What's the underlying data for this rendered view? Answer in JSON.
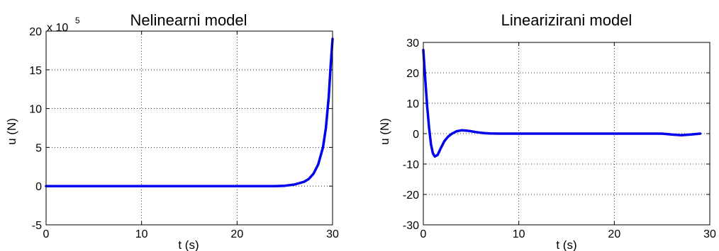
{
  "chart_data": [
    {
      "type": "line",
      "title": "Nelinearni model",
      "xlabel": "t (s)",
      "ylabel": "u (N)",
      "y_multiplier_label": {
        "base": "x 10",
        "exponent": "5"
      },
      "xlim": [
        0,
        30
      ],
      "ylim": [
        -5,
        20
      ],
      "xticks": [
        0,
        10,
        20,
        30
      ],
      "yticks": [
        -5,
        0,
        5,
        10,
        15,
        20
      ],
      "xtick_labels": [
        "0",
        "10",
        "20",
        "30"
      ],
      "ytick_labels": [
        "-5",
        "0",
        "5",
        "10",
        "15",
        "20"
      ],
      "grid": true,
      "series_color": "#0000ee",
      "series": [
        {
          "x": [
            0,
            5,
            10,
            15,
            20,
            24,
            25,
            26,
            27,
            27.5,
            28,
            28.5,
            29,
            29.3,
            29.6,
            29.8,
            30
          ],
          "values": [
            0,
            0,
            0,
            0,
            0,
            0,
            0.05,
            0.2,
            0.55,
            0.9,
            1.6,
            2.8,
            5.0,
            7.5,
            11.5,
            15.5,
            19
          ]
        }
      ]
    },
    {
      "type": "line",
      "title": "Linearizirani model",
      "xlabel": "t (s)",
      "ylabel": "u (N)",
      "xlim": [
        0,
        30
      ],
      "ylim": [
        -30,
        30
      ],
      "xticks": [
        0,
        10,
        20,
        30
      ],
      "yticks": [
        -30,
        -20,
        -10,
        0,
        10,
        20,
        30
      ],
      "xtick_labels": [
        "0",
        "10",
        "20",
        "30"
      ],
      "ytick_labels": [
        "-30",
        "-20",
        "-10",
        "0",
        "10",
        "20",
        "30"
      ],
      "grid": true,
      "series_color": "#0000ee",
      "series": [
        {
          "x": [
            0,
            0.2,
            0.4,
            0.6,
            0.8,
            1.0,
            1.2,
            1.5,
            1.8,
            2.2,
            2.6,
            3.0,
            3.5,
            4.0,
            4.5,
            5.0,
            5.5,
            6.0,
            6.5,
            7.0,
            8.0,
            10,
            15,
            20,
            25,
            26,
            27,
            28,
            29
          ],
          "values": [
            27.5,
            18,
            9,
            2,
            -3.5,
            -6.5,
            -7.5,
            -7,
            -5,
            -2.5,
            -1,
            0,
            0.8,
            1.1,
            1.0,
            0.8,
            0.5,
            0.3,
            0.15,
            0.05,
            0,
            0,
            0,
            0,
            0,
            -0.3,
            -0.5,
            -0.3,
            0
          ]
        }
      ]
    }
  ]
}
